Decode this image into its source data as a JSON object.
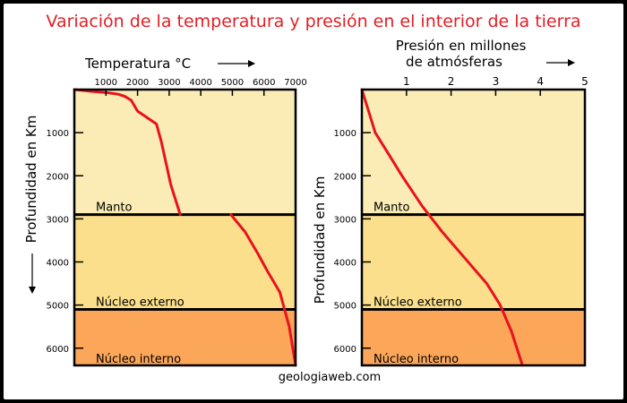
{
  "title": "Variación de la temperatura y presión en el interior de la tierra",
  "credit": "geologiaweb.com",
  "colors": {
    "frame_bg": "#ffffff",
    "outer_bg": "#000000",
    "title": "#e31e24",
    "curve": "#e8121e",
    "manto": "#faecb4",
    "nucleo_externo": "#fbdf8c",
    "nucleo_interno": "#fca65a"
  },
  "chart_data": [
    {
      "type": "line",
      "xlabel": "Temperatura °C",
      "ylabel": "Profundidad en Km",
      "x_ticks": [
        1000,
        2000,
        3000,
        4000,
        5000,
        6000,
        7000
      ],
      "y_ticks": [
        1000,
        2000,
        3000,
        4000,
        5000,
        6000
      ],
      "xlim": [
        0,
        7000
      ],
      "ylim": [
        0,
        6400
      ],
      "layers": [
        {
          "name": "Manto",
          "from": 0,
          "to": 2900
        },
        {
          "name": "Núcleo externo",
          "from": 2900,
          "to": 5100
        },
        {
          "name": "Núcleo interno",
          "from": 5100,
          "to": 6400
        }
      ],
      "series": [
        {
          "x": [
            0,
            500,
            1000,
            1200,
            1400,
            1600,
            1800,
            2000,
            2200,
            2600,
            2750,
            2900,
            3050,
            3350
          ],
          "y": [
            0,
            40,
            70,
            90,
            110,
            160,
            250,
            500,
            600,
            800,
            1200,
            1700,
            2200,
            2900
          ]
        },
        {
          "x": [
            4950,
            5400,
            5800,
            6100,
            6500,
            6800,
            7000
          ],
          "y": [
            2900,
            3300,
            3800,
            4200,
            4700,
            5500,
            6400
          ]
        }
      ]
    },
    {
      "type": "line",
      "xlabel": "Presión en millones de atmósferas",
      "ylabel": "Profundidad en Km",
      "x_ticks": [
        1,
        2,
        3,
        4,
        5
      ],
      "y_ticks": [
        1000,
        2000,
        3000,
        4000,
        5000,
        6000
      ],
      "xlim": [
        0,
        5
      ],
      "ylim": [
        0,
        6400
      ],
      "layers": [
        {
          "name": "Manto",
          "from": 0,
          "to": 2900
        },
        {
          "name": "Núcleo externo",
          "from": 2900,
          "to": 5100
        },
        {
          "name": "Núcleo interno",
          "from": 5100,
          "to": 6400
        }
      ],
      "series": [
        {
          "x": [
            0,
            0.15,
            0.3,
            0.6,
            0.9,
            1.35,
            1.8,
            2.3,
            2.8,
            3.1,
            3.35,
            3.6
          ],
          "y": [
            0,
            500,
            1000,
            1500,
            2000,
            2700,
            3300,
            3900,
            4500,
            5000,
            5600,
            6400
          ]
        }
      ]
    }
  ]
}
